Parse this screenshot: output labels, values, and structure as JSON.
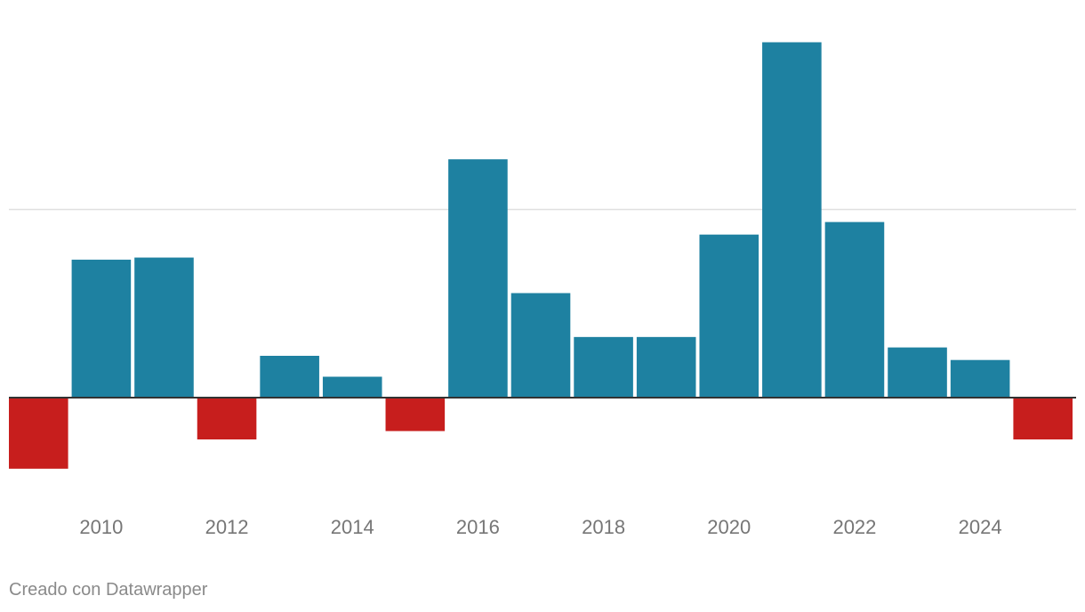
{
  "chart_data": {
    "type": "bar",
    "title": "",
    "xlabel": "",
    "ylabel": "",
    "categories": [
      "2009",
      "2010",
      "2011",
      "2012",
      "2013",
      "2014",
      "2015",
      "2016",
      "2017",
      "2018",
      "2019",
      "2020",
      "2021",
      "2022",
      "2023",
      "2024",
      "2025"
    ],
    "values": [
      -1.7,
      3.3,
      3.35,
      -1.0,
      1.0,
      0.5,
      -0.8,
      5.7,
      2.5,
      1.45,
      1.45,
      3.9,
      8.5,
      4.2,
      1.2,
      0.9,
      -1.0
    ],
    "x_tick_labels": [
      "2010",
      "2012",
      "2014",
      "2016",
      "2018",
      "2020",
      "2022",
      "2024"
    ],
    "ylim": [
      -2.3,
      8.6
    ],
    "gridlines": [
      4.5
    ],
    "grid": true,
    "legend": "none",
    "colors": {
      "positive": "#1e81a1",
      "negative": "#c71e1d",
      "grid": "#e0e0e0",
      "baseline": "#333333"
    }
  },
  "footer": {
    "credit": "Creado con Datawrapper"
  }
}
